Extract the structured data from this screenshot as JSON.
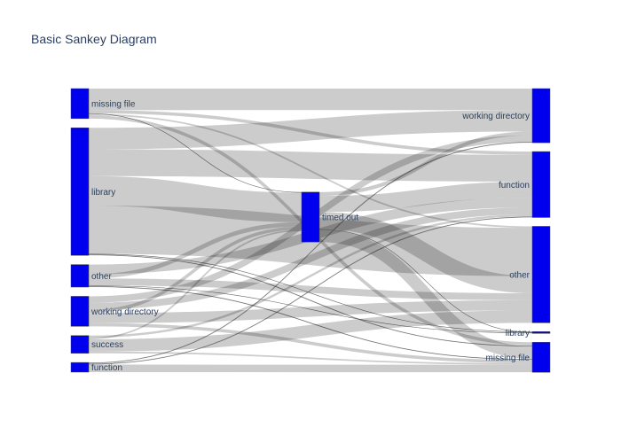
{
  "chart_data": {
    "type": "sankey",
    "title": "Basic Sankey Diagram",
    "node_color": "#0000ee",
    "link_color": "#000000",
    "link_opacity": 0.2,
    "nodes": {
      "left": [
        {
          "id": "L_missing_file",
          "label": "missing file"
        },
        {
          "id": "L_library",
          "label": "library"
        },
        {
          "id": "L_other",
          "label": "other"
        },
        {
          "id": "L_working_directory",
          "label": "working directory"
        },
        {
          "id": "L_success",
          "label": "success"
        },
        {
          "id": "L_function",
          "label": "function"
        }
      ],
      "middle": [
        {
          "id": "M_timed_out",
          "label": "timed out"
        }
      ],
      "right": [
        {
          "id": "R_working_directory",
          "label": "working directory"
        },
        {
          "id": "R_function",
          "label": "function"
        },
        {
          "id": "R_other",
          "label": "other"
        },
        {
          "id": "R_library",
          "label": "library"
        },
        {
          "id": "R_missing_file",
          "label": "missing file"
        }
      ]
    },
    "links": [
      {
        "source": "L_missing_file",
        "target": "R_working_directory",
        "value": 4
      },
      {
        "source": "L_missing_file",
        "target": "R_function",
        "value": 0.6
      },
      {
        "source": "L_missing_file",
        "target": "R_other",
        "value": 0.3
      },
      {
        "source": "L_missing_file",
        "target": "R_missing_file",
        "value": 0.6
      },
      {
        "source": "L_missing_file",
        "target": "M_timed_out",
        "value": 0.1
      },
      {
        "source": "L_library",
        "target": "R_working_directory",
        "value": 4
      },
      {
        "source": "L_library",
        "target": "R_function",
        "value": 5
      },
      {
        "source": "L_library",
        "target": "R_other",
        "value": 9
      },
      {
        "source": "L_library",
        "target": "M_timed_out",
        "value": 5.5
      },
      {
        "source": "L_library",
        "target": "R_missing_file",
        "value": 0.2
      },
      {
        "source": "L_library",
        "target": "R_library",
        "value": 0.1
      },
      {
        "source": "L_other",
        "target": "R_function",
        "value": 1.8
      },
      {
        "source": "L_other",
        "target": "M_timed_out",
        "value": 0.8
      },
      {
        "source": "L_other",
        "target": "R_other",
        "value": 1.3
      },
      {
        "source": "L_other",
        "target": "R_missing_file",
        "value": 0.2
      },
      {
        "source": "L_other",
        "target": "R_library",
        "value": 0.1
      },
      {
        "source": "L_working_directory",
        "target": "R_working_directory",
        "value": 1.2
      },
      {
        "source": "L_working_directory",
        "target": "R_function",
        "value": 1.3
      },
      {
        "source": "L_working_directory",
        "target": "M_timed_out",
        "value": 0.6
      },
      {
        "source": "L_working_directory",
        "target": "R_other",
        "value": 1.9
      },
      {
        "source": "L_working_directory",
        "target": "R_missing_file",
        "value": 0.6
      },
      {
        "source": "L_success",
        "target": "R_function",
        "value": 0.4
      },
      {
        "source": "L_success",
        "target": "M_timed_out",
        "value": 0.3
      },
      {
        "source": "L_success",
        "target": "R_other",
        "value": 2.3
      },
      {
        "source": "L_success",
        "target": "R_missing_file",
        "value": 0.3
      },
      {
        "source": "L_function",
        "target": "R_working_directory",
        "value": 0.2
      },
      {
        "source": "L_function",
        "target": "R_function",
        "value": 0.2
      },
      {
        "source": "L_function",
        "target": "R_missing_file",
        "value": 1.4
      },
      {
        "source": "M_timed_out",
        "target": "R_working_directory",
        "value": 0.7
      },
      {
        "source": "M_timed_out",
        "target": "R_function",
        "value": 3.0
      },
      {
        "source": "M_timed_out",
        "target": "R_other",
        "value": 3.2
      },
      {
        "source": "M_timed_out",
        "target": "R_library",
        "value": 0.1
      },
      {
        "source": "M_timed_out",
        "target": "R_missing_file",
        "value": 2.3
      }
    ]
  }
}
